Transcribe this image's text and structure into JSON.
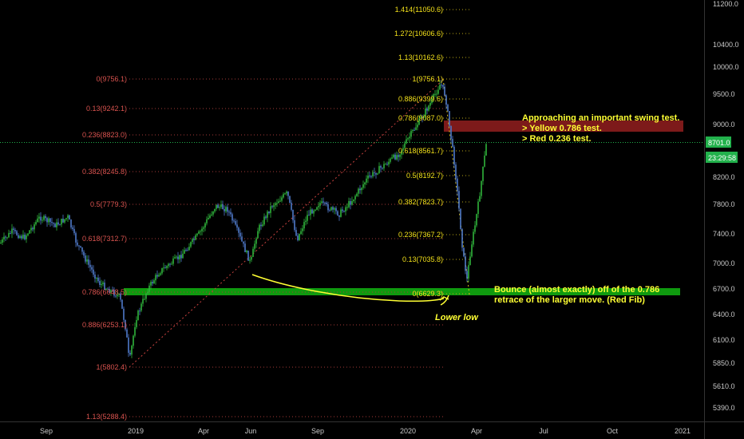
{
  "chart_data": {
    "type": "candlestick",
    "y_axis": {
      "ticks": [
        "11200.0",
        "10400.0",
        "10000.0",
        "9500.0",
        "9000.0",
        "8200.0",
        "7800.0",
        "7400.0",
        "7000.0",
        "6700.0",
        "6400.0",
        "6100.0",
        "5850.0",
        "5610.0",
        "5390.0"
      ],
      "current_price": "8701.0",
      "countdown": "23:29:58",
      "current_color": "#22b14c"
    },
    "x_axis": {
      "ticks": [
        "Sep",
        "2019",
        "Apr",
        "Jun",
        "Sep",
        "2020",
        "Apr",
        "Apr",
        "Jul",
        "Oct",
        "2021"
      ]
    },
    "fib_red": {
      "color": "#d9534f",
      "levels": [
        "0(9756.1)",
        "0.13(9242.1)",
        "0.236(8823.0)",
        "0.382(8245.8)",
        "0.5(7779.3)",
        "0.618(7312.7)",
        "0.786(6648.5)",
        "0.886(6253.1)",
        "1(5802.4)",
        "1.13(5288.4)"
      ]
    },
    "fib_yellow": {
      "color": "#f2e01a",
      "levels": [
        "1.414(11050.6)",
        "1.272(10606.6)",
        "1.13(10162.6)",
        "1(9756.1)",
        "0.886(9399.6)",
        "0.786(9087.0)",
        "0.618(8561.7)",
        "0.5(8192.7)",
        "0.382(7823.7)",
        "0.236(7367.2)",
        "0.13(7035.8)",
        "0(6629.3)"
      ]
    },
    "annotations": {
      "top_note": [
        "Approaching an important swing test.",
        "> Yellow 0.786 test.",
        "> Red 0.236 test."
      ],
      "bottom_note": [
        "Bounce (almost exactly) off of the 0.786",
        "retrace of the larger move. (Red Fib)"
      ],
      "lower_low": "Lower low"
    },
    "colors": {
      "up": "#2fb33b",
      "down": "#4f79c9",
      "red_zone": "#8b1d1d",
      "green_zone": "#0f9a0f",
      "curve": "#ffff33"
    }
  }
}
